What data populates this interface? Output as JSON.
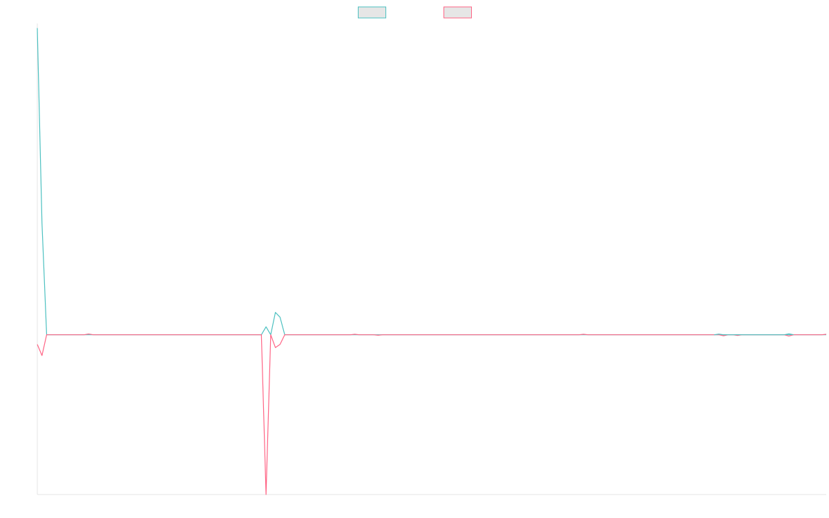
{
  "chart_data": {
    "type": "line",
    "title": "",
    "xlabel": "",
    "ylabel": "",
    "legend_placement": "top-center",
    "grid": false,
    "x_count": 170,
    "ylim": [
      -1.0,
      1.94
    ],
    "series": [
      {
        "name": "",
        "color": "#4bc0c0",
        "fill": "#e6e6e6",
        "points": [
          [
            0,
            1.92
          ],
          [
            1,
            0.7
          ],
          [
            2,
            0.0
          ],
          [
            48,
            0.0
          ],
          [
            49,
            0.05
          ],
          [
            50,
            0.0
          ],
          [
            51,
            0.14
          ],
          [
            52,
            0.11
          ],
          [
            53,
            0.0
          ],
          [
            169,
            0.0
          ]
        ]
      },
      {
        "name": "",
        "color": "#ff6384",
        "fill": "#e6e6e6",
        "points": [
          [
            0,
            -0.06
          ],
          [
            1,
            -0.13
          ],
          [
            2,
            0.0
          ],
          [
            10,
            0.0
          ],
          [
            11,
            0.005
          ],
          [
            12,
            0.0
          ],
          [
            48,
            0.0
          ],
          [
            49,
            -1.0
          ],
          [
            50,
            0.0
          ],
          [
            51,
            -0.08
          ],
          [
            52,
            -0.06
          ],
          [
            53,
            0.0
          ],
          [
            67,
            0.0
          ],
          [
            68,
            0.003
          ],
          [
            69,
            0.0
          ],
          [
            72,
            0.0
          ],
          [
            73,
            -0.003
          ],
          [
            74,
            0.0
          ],
          [
            116,
            0.0
          ],
          [
            117,
            0.003
          ],
          [
            118,
            0.0
          ],
          [
            146,
            0.0
          ],
          [
            147,
            -0.006
          ],
          [
            148,
            0.0
          ],
          [
            149,
            0.0
          ],
          [
            150,
            -0.004
          ],
          [
            151,
            0.0
          ],
          [
            160,
            0.0
          ],
          [
            161,
            -0.008
          ],
          [
            162,
            0.0
          ],
          [
            168,
            0.0
          ],
          [
            169,
            0.003
          ]
        ]
      },
      {
        "name": "",
        "color": "#4bc0c0",
        "points": [
          [
            145,
            0.0
          ],
          [
            146,
            0.004
          ],
          [
            147,
            0.0
          ],
          [
            160,
            0.0
          ],
          [
            161,
            0.006
          ],
          [
            162,
            0.0
          ]
        ]
      }
    ]
  }
}
